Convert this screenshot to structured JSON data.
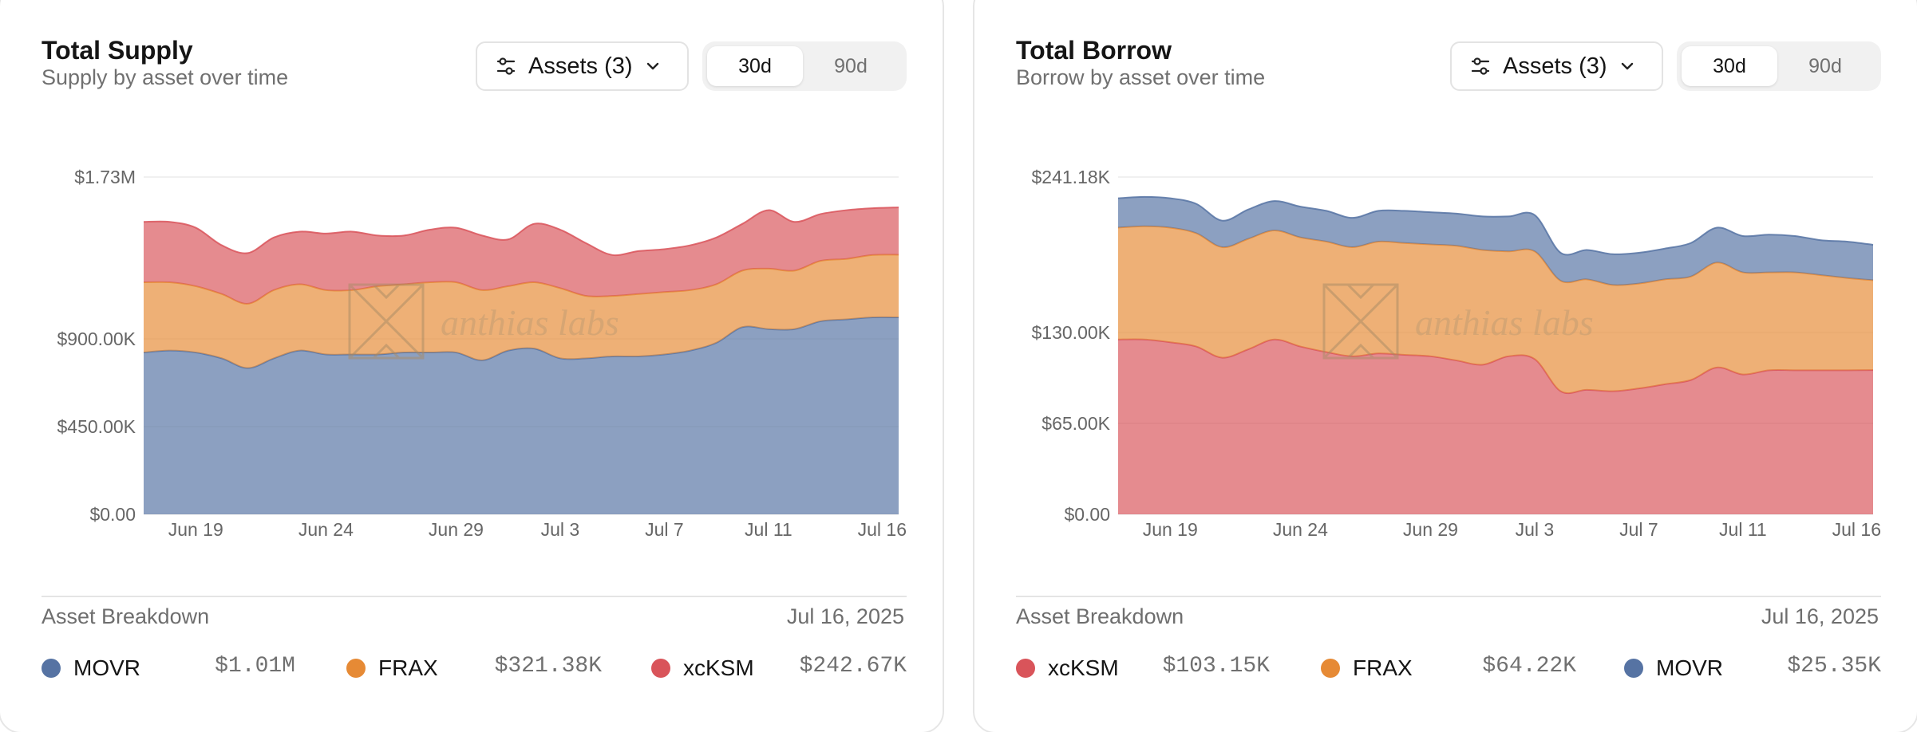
{
  "panels": [
    {
      "title": "Total Supply",
      "subtitle": "Supply by asset over time",
      "assets_button": "Assets (3)",
      "periods": [
        "30d",
        "90d"
      ],
      "active_period": "30d",
      "watermark": "anthias labs",
      "breakdown_title": "Asset Breakdown",
      "breakdown_date": "Jul 16, 2025",
      "legend": [
        {
          "name": "MOVR",
          "value": "$1.01M",
          "color": "#5673a3"
        },
        {
          "name": "FRAX",
          "value": "$321.38K",
          "color": "#e68a35"
        },
        {
          "name": "xcKSM",
          "value": "$242.67K",
          "color": "#d9545a"
        }
      ]
    },
    {
      "title": "Total Borrow",
      "subtitle": "Borrow by asset over time",
      "assets_button": "Assets (3)",
      "periods": [
        "30d",
        "90d"
      ],
      "active_period": "30d",
      "watermark": "anthias labs",
      "breakdown_title": "Asset Breakdown",
      "breakdown_date": "Jul 16, 2025",
      "legend": [
        {
          "name": "xcKSM",
          "value": "$103.15K",
          "color": "#d9545a"
        },
        {
          "name": "FRAX",
          "value": "$64.22K",
          "color": "#e68a35"
        },
        {
          "name": "MOVR",
          "value": "$25.35K",
          "color": "#5673a3"
        }
      ]
    }
  ],
  "chart_data": [
    {
      "type": "area",
      "stacked": true,
      "title": "Total Supply",
      "subtitle": "Supply by asset over time",
      "x": [
        "Jun 17",
        "Jun 18",
        "Jun 19",
        "Jun 20",
        "Jun 21",
        "Jun 22",
        "Jun 23",
        "Jun 24",
        "Jun 25",
        "Jun 26",
        "Jun 27",
        "Jun 28",
        "Jun 29",
        "Jun 30",
        "Jul 1",
        "Jul 2",
        "Jul 3",
        "Jul 4",
        "Jul 5",
        "Jul 6",
        "Jul 7",
        "Jul 8",
        "Jul 9",
        "Jul 10",
        "Jul 11",
        "Jul 12",
        "Jul 13",
        "Jul 14",
        "Jul 15",
        "Jul 16"
      ],
      "x_ticks": [
        "Jun 19",
        "Jun 24",
        "Jun 29",
        "Jul 3",
        "Jul 7",
        "Jul 11",
        "Jul 16"
      ],
      "y_ticks": [
        "$0.00",
        "$450.00K",
        "$900.00K",
        "$1.73M"
      ],
      "ylim": [
        0,
        1730000
      ],
      "series": [
        {
          "name": "MOVR",
          "color": "#5673a3",
          "values": [
            830000,
            840000,
            830000,
            800000,
            750000,
            800000,
            840000,
            820000,
            820000,
            820000,
            830000,
            830000,
            830000,
            790000,
            840000,
            850000,
            800000,
            800000,
            810000,
            810000,
            820000,
            840000,
            880000,
            960000,
            950000,
            950000,
            990000,
            1000000,
            1010000,
            1010000
          ]
        },
        {
          "name": "FRAX",
          "color": "#e68a35",
          "values": [
            360000,
            350000,
            340000,
            330000,
            330000,
            350000,
            340000,
            330000,
            330000,
            350000,
            350000,
            360000,
            360000,
            360000,
            330000,
            340000,
            360000,
            320000,
            310000,
            320000,
            320000,
            310000,
            300000,
            290000,
            310000,
            300000,
            310000,
            310000,
            320000,
            321380
          ]
        },
        {
          "name": "xcKSM",
          "color": "#d9545a",
          "values": [
            310000,
            310000,
            300000,
            250000,
            260000,
            270000,
            270000,
            290000,
            300000,
            260000,
            250000,
            270000,
            280000,
            280000,
            240000,
            300000,
            300000,
            270000,
            210000,
            220000,
            220000,
            230000,
            240000,
            240000,
            300000,
            250000,
            240000,
            250000,
            240000,
            242670
          ]
        }
      ]
    },
    {
      "type": "area",
      "stacked": true,
      "title": "Total Borrow",
      "subtitle": "Borrow by asset over time",
      "x": [
        "Jun 17",
        "Jun 18",
        "Jun 19",
        "Jun 20",
        "Jun 21",
        "Jun 22",
        "Jun 23",
        "Jun 24",
        "Jun 25",
        "Jun 26",
        "Jun 27",
        "Jun 28",
        "Jun 29",
        "Jun 30",
        "Jul 1",
        "Jul 2",
        "Jul 3",
        "Jul 4",
        "Jul 5",
        "Jul 6",
        "Jul 7",
        "Jul 8",
        "Jul 9",
        "Jul 10",
        "Jul 11",
        "Jul 12",
        "Jul 13",
        "Jul 14",
        "Jul 15",
        "Jul 16"
      ],
      "x_ticks": [
        "Jun 19",
        "Jun 24",
        "Jun 29",
        "Jul 3",
        "Jul 7",
        "Jul 11",
        "Jul 16"
      ],
      "y_ticks": [
        "$0.00",
        "$65.00K",
        "$130.00K",
        "$241.18K"
      ],
      "ylim": [
        0,
        241180
      ],
      "series": [
        {
          "name": "xcKSM",
          "color": "#d9545a",
          "values": [
            125000,
            125000,
            123000,
            120000,
            112000,
            118000,
            125000,
            120000,
            116000,
            113000,
            115000,
            114000,
            113000,
            110000,
            107000,
            113000,
            111000,
            88000,
            89000,
            88000,
            90000,
            93000,
            96000,
            105000,
            100000,
            103000,
            103000,
            103000,
            103000,
            103150
          ]
        },
        {
          "name": "FRAX",
          "color": "#e68a35",
          "values": [
            80000,
            81000,
            82000,
            81000,
            79000,
            79000,
            78000,
            78000,
            79000,
            78000,
            80000,
            80000,
            80000,
            82000,
            82000,
            75000,
            77000,
            79000,
            79000,
            76000,
            75000,
            75000,
            74000,
            75000,
            73000,
            70000,
            70000,
            68000,
            66000,
            64220
          ]
        },
        {
          "name": "MOVR",
          "color": "#5673a3",
          "values": [
            21000,
            21000,
            21000,
            21000,
            19000,
            21000,
            21000,
            22000,
            22000,
            21000,
            22000,
            23000,
            23000,
            23000,
            24000,
            25000,
            26000,
            20000,
            21000,
            22000,
            22000,
            22000,
            24000,
            25000,
            26000,
            27000,
            26000,
            25000,
            26000,
            25350
          ]
        }
      ]
    }
  ]
}
